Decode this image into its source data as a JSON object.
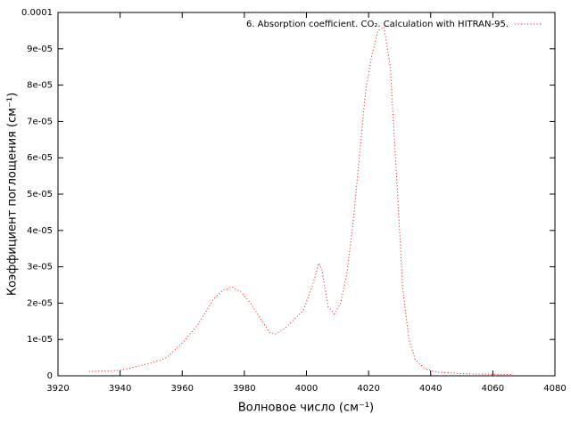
{
  "chart_data": {
    "type": "line",
    "xlabel": "Волновое число (см⁻¹)",
    "ylabel": "Коэффициент поглощения (см⁻¹)",
    "xlim": [
      3920,
      4080
    ],
    "xticks": [
      3920,
      3940,
      3960,
      3980,
      4000,
      4020,
      4040,
      4060,
      4080
    ],
    "ylim": [
      0,
      0.0001
    ],
    "yticks": [
      0,
      {
        "value": 1e-05,
        "label": "1e-05"
      },
      {
        "value": 2e-05,
        "label": "2e-05"
      },
      {
        "value": 3e-05,
        "label": "3e-05"
      },
      {
        "value": 4e-05,
        "label": "4e-05"
      },
      {
        "value": 5e-05,
        "label": "5e-05"
      },
      {
        "value": 6e-05,
        "label": "6e-05"
      },
      {
        "value": 7e-05,
        "label": "7e-05"
      },
      {
        "value": 8e-05,
        "label": "8e-05"
      },
      {
        "value": 9e-05,
        "label": "9e-05"
      },
      0.0001
    ],
    "legend": "top-right",
    "x": [
      3930,
      3940,
      3945,
      3950,
      3955,
      3960,
      3965,
      3970,
      3973,
      3976,
      3979,
      3982,
      3985,
      3988,
      3990,
      3993,
      3996,
      3999,
      4002,
      4004,
      4005,
      4007,
      4009,
      4011,
      4013,
      4015,
      4017,
      4019,
      4021,
      4023,
      4025,
      4027,
      4029,
      4031,
      4033,
      4035,
      4038,
      4042,
      4050,
      4060,
      4066
    ],
    "series": [
      {
        "name": "6. Absorption coefficient. CO₂. Calculation with HITRAN-95.",
        "color": "#ff0000",
        "values": [
          1.2e-06,
          1.5e-06,
          2.5e-06,
          3.5e-06,
          5e-06,
          9e-06,
          1.4e-05,
          2.1e-05,
          2.35e-05,
          2.45e-05,
          2.3e-05,
          2e-05,
          1.6e-05,
          1.2e-05,
          1.15e-05,
          1.3e-05,
          1.55e-05,
          1.8e-05,
          2.5e-05,
          3.1e-05,
          2.9e-05,
          1.9e-05,
          1.7e-05,
          2e-05,
          2.8e-05,
          4.2e-05,
          6e-05,
          7.8e-05,
          8.8e-05,
          9.5e-05,
          9.6e-05,
          8.5e-05,
          5.5e-05,
          2.4e-05,
          1e-05,
          4.5e-06,
          2e-06,
          1e-06,
          6e-07,
          4e-07,
          4e-07
        ]
      }
    ]
  }
}
